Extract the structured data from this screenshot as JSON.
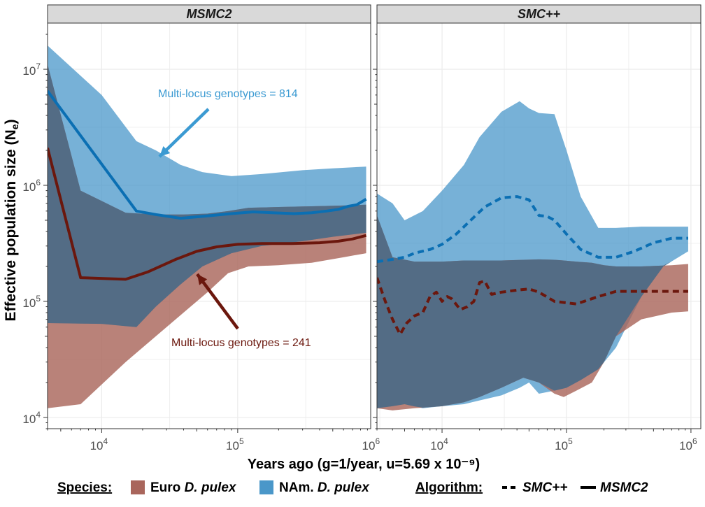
{
  "y_axis_label": "Effective population size (N",
  "y_axis_label_sub": "e",
  "y_axis_label_close": ")",
  "x_axis_label": "Years ago (g=1/year, u=5.69 x 10⁻⁹)",
  "legend": {
    "species_title": "Species:",
    "species_items": [
      {
        "prefix": "Euro ",
        "italic": "D. pulex",
        "color": "#a9665c"
      },
      {
        "prefix": "NAm. ",
        "italic": "D. pulex",
        "color": "#4a97c9"
      }
    ],
    "algorithm_title": "Algorithm:",
    "algorithm_items": [
      {
        "label": "SMC++",
        "dash": "dashed"
      },
      {
        "label": "MSMC2",
        "dash": "solid"
      }
    ]
  },
  "colors": {
    "euro_ribbon": "#a9665c",
    "nam_ribbon": "#4a97c9",
    "overlap_ribbon": "#4f6b86",
    "euro_line": "#6b170d",
    "nam_line": "#0b6fb3",
    "strip_bg": "#d9d9d9",
    "grid": "#ebebeb"
  },
  "chart_data": [
    {
      "type": "area",
      "panel": "MSMC2",
      "title": "MSMC2",
      "x_scale": "log",
      "y_scale": "log",
      "xlim": [
        4000,
        950000
      ],
      "ylim": [
        8000,
        25000000
      ],
      "x_ticks": [
        {
          "value": 10000,
          "base": "10",
          "exp": "4"
        },
        {
          "value": 100000,
          "base": "10",
          "exp": "5"
        },
        {
          "value": 1000000,
          "base": "10",
          "exp": "6"
        }
      ],
      "y_ticks": [
        {
          "value": 10000,
          "base": "10",
          "exp": "4"
        },
        {
          "value": 100000,
          "base": "10",
          "exp": "5"
        },
        {
          "value": 1000000,
          "base": "10",
          "exp": "6"
        },
        {
          "value": 10000000,
          "base": "10",
          "exp": "7"
        }
      ],
      "grid": true,
      "series": [
        {
          "group": "nam",
          "kind": "ribbon",
          "x": [
            4000,
            10000,
            18000,
            25000,
            38000,
            55000,
            90000,
            150000,
            300000,
            500000,
            880000
          ],
          "lower": [
            65000,
            64000,
            60000,
            90000,
            140000,
            200000,
            260000,
            300000,
            330000,
            360000,
            390000
          ],
          "upper": [
            16000000,
            6000000,
            2400000,
            2000000,
            1500000,
            1300000,
            1200000,
            1250000,
            1350000,
            1400000,
            1450000
          ]
        },
        {
          "group": "euro",
          "kind": "ribbon",
          "x": [
            4000,
            7000,
            15000,
            25000,
            40000,
            60000,
            85000,
            120000,
            200000,
            350000,
            600000,
            880000
          ],
          "lower": [
            12000,
            13000,
            30000,
            50000,
            80000,
            120000,
            175000,
            200000,
            205000,
            215000,
            240000,
            260000
          ],
          "upper": [
            11000000,
            900000,
            580000,
            560000,
            560000,
            570000,
            600000,
            640000,
            650000,
            660000,
            670000,
            680000
          ]
        },
        {
          "group": "nam",
          "kind": "line",
          "dash": "solid",
          "x": [
            4000,
            18000,
            25000,
            38000,
            55000,
            90000,
            130000,
            180000,
            260000,
            350000,
            450000,
            550000,
            650000,
            750000,
            880000
          ],
          "y": [
            6500000,
            600000,
            560000,
            520000,
            540000,
            570000,
            590000,
            580000,
            570000,
            580000,
            600000,
            620000,
            660000,
            680000,
            760000
          ]
        },
        {
          "group": "euro",
          "kind": "line",
          "dash": "solid",
          "x": [
            4000,
            7000,
            15000,
            22000,
            35000,
            50000,
            70000,
            100000,
            150000,
            250000,
            400000,
            550000,
            700000,
            880000
          ],
          "y": [
            2100000,
            160000,
            155000,
            180000,
            230000,
            270000,
            295000,
            310000,
            315000,
            315000,
            320000,
            330000,
            345000,
            370000
          ]
        }
      ],
      "annotations": [
        {
          "text": "Multi-locus genotypes = 814",
          "color": "#3b9ad2"
        },
        {
          "text": "Multi-locus genotypes = 241",
          "color": "#6b170d"
        }
      ]
    },
    {
      "type": "area",
      "panel": "SMC++",
      "title": "SMC++",
      "x_scale": "log",
      "y_scale": "log",
      "xlim": [
        3000,
        1200000
      ],
      "ylim": [
        8000,
        25000000
      ],
      "x_ticks": [
        {
          "value": 10000,
          "base": "10",
          "exp": "4"
        },
        {
          "value": 100000,
          "base": "10",
          "exp": "5"
        },
        {
          "value": 1000000,
          "base": "10",
          "exp": "6"
        }
      ],
      "grid": true,
      "series": [
        {
          "group": "nam",
          "kind": "ribbon",
          "x": [
            3000,
            4000,
            5000,
            7000,
            10000,
            15000,
            20000,
            30000,
            42000,
            50000,
            60000,
            80000,
            100000,
            130000,
            180000,
            250000,
            400000,
            600000,
            950000
          ],
          "lower": [
            12000,
            12500,
            13000,
            12000,
            12500,
            13000,
            14000,
            15500,
            18000,
            20000,
            16000,
            17000,
            18000,
            21000,
            26000,
            40000,
            110000,
            200000,
            270000
          ],
          "upper": [
            850000,
            700000,
            500000,
            600000,
            900000,
            1500000,
            2600000,
            4300000,
            5300000,
            4600000,
            4200000,
            4100000,
            2000000,
            800000,
            430000,
            430000,
            440000,
            440000,
            440000
          ]
        },
        {
          "group": "euro",
          "kind": "ribbon",
          "x": [
            3000,
            4000,
            6000,
            10000,
            15000,
            20000,
            30000,
            45000,
            60000,
            80000,
            95000,
            120000,
            160000,
            200000,
            250000,
            400000,
            700000,
            950000
          ],
          "lower": [
            12000,
            11500,
            12000,
            12500,
            13500,
            15000,
            18000,
            22000,
            20000,
            16000,
            15000,
            17000,
            20000,
            30000,
            50000,
            70000,
            80000,
            82000
          ],
          "upper": [
            550000,
            240000,
            220000,
            220000,
            225000,
            225000,
            225000,
            228000,
            230000,
            228000,
            225000,
            220000,
            215000,
            205000,
            200000,
            200000,
            205000,
            210000
          ]
        },
        {
          "group": "nam",
          "kind": "line",
          "dash": "dashed",
          "x": [
            3000,
            4000,
            5000,
            6000,
            8000,
            10000,
            13000,
            17000,
            22000,
            30000,
            40000,
            50000,
            60000,
            70000,
            80000,
            100000,
            130000,
            180000,
            250000,
            350000,
            500000,
            700000,
            950000
          ],
          "y": [
            220000,
            230000,
            240000,
            260000,
            280000,
            310000,
            380000,
            500000,
            650000,
            780000,
            800000,
            750000,
            550000,
            540000,
            500000,
            380000,
            280000,
            240000,
            240000,
            270000,
            320000,
            350000,
            350000
          ]
        },
        {
          "group": "euro",
          "kind": "line",
          "dash": "dashed",
          "x": [
            3000,
            3500,
            4000,
            4600,
            5200,
            6000,
            7000,
            8000,
            9000,
            10000,
            11000,
            12000,
            14000,
            16000,
            18000,
            20000,
            22000,
            25000,
            30000,
            40000,
            50000,
            60000,
            80000,
            120000,
            180000,
            250000,
            400000,
            700000,
            950000
          ],
          "y": [
            160000,
            100000,
            70000,
            52000,
            65000,
            75000,
            80000,
            110000,
            120000,
            100000,
            110000,
            105000,
            85000,
            90000,
            100000,
            145000,
            150000,
            115000,
            120000,
            125000,
            128000,
            120000,
            100000,
            95000,
            110000,
            122000,
            122000,
            122000,
            122000
          ]
        }
      ]
    }
  ]
}
